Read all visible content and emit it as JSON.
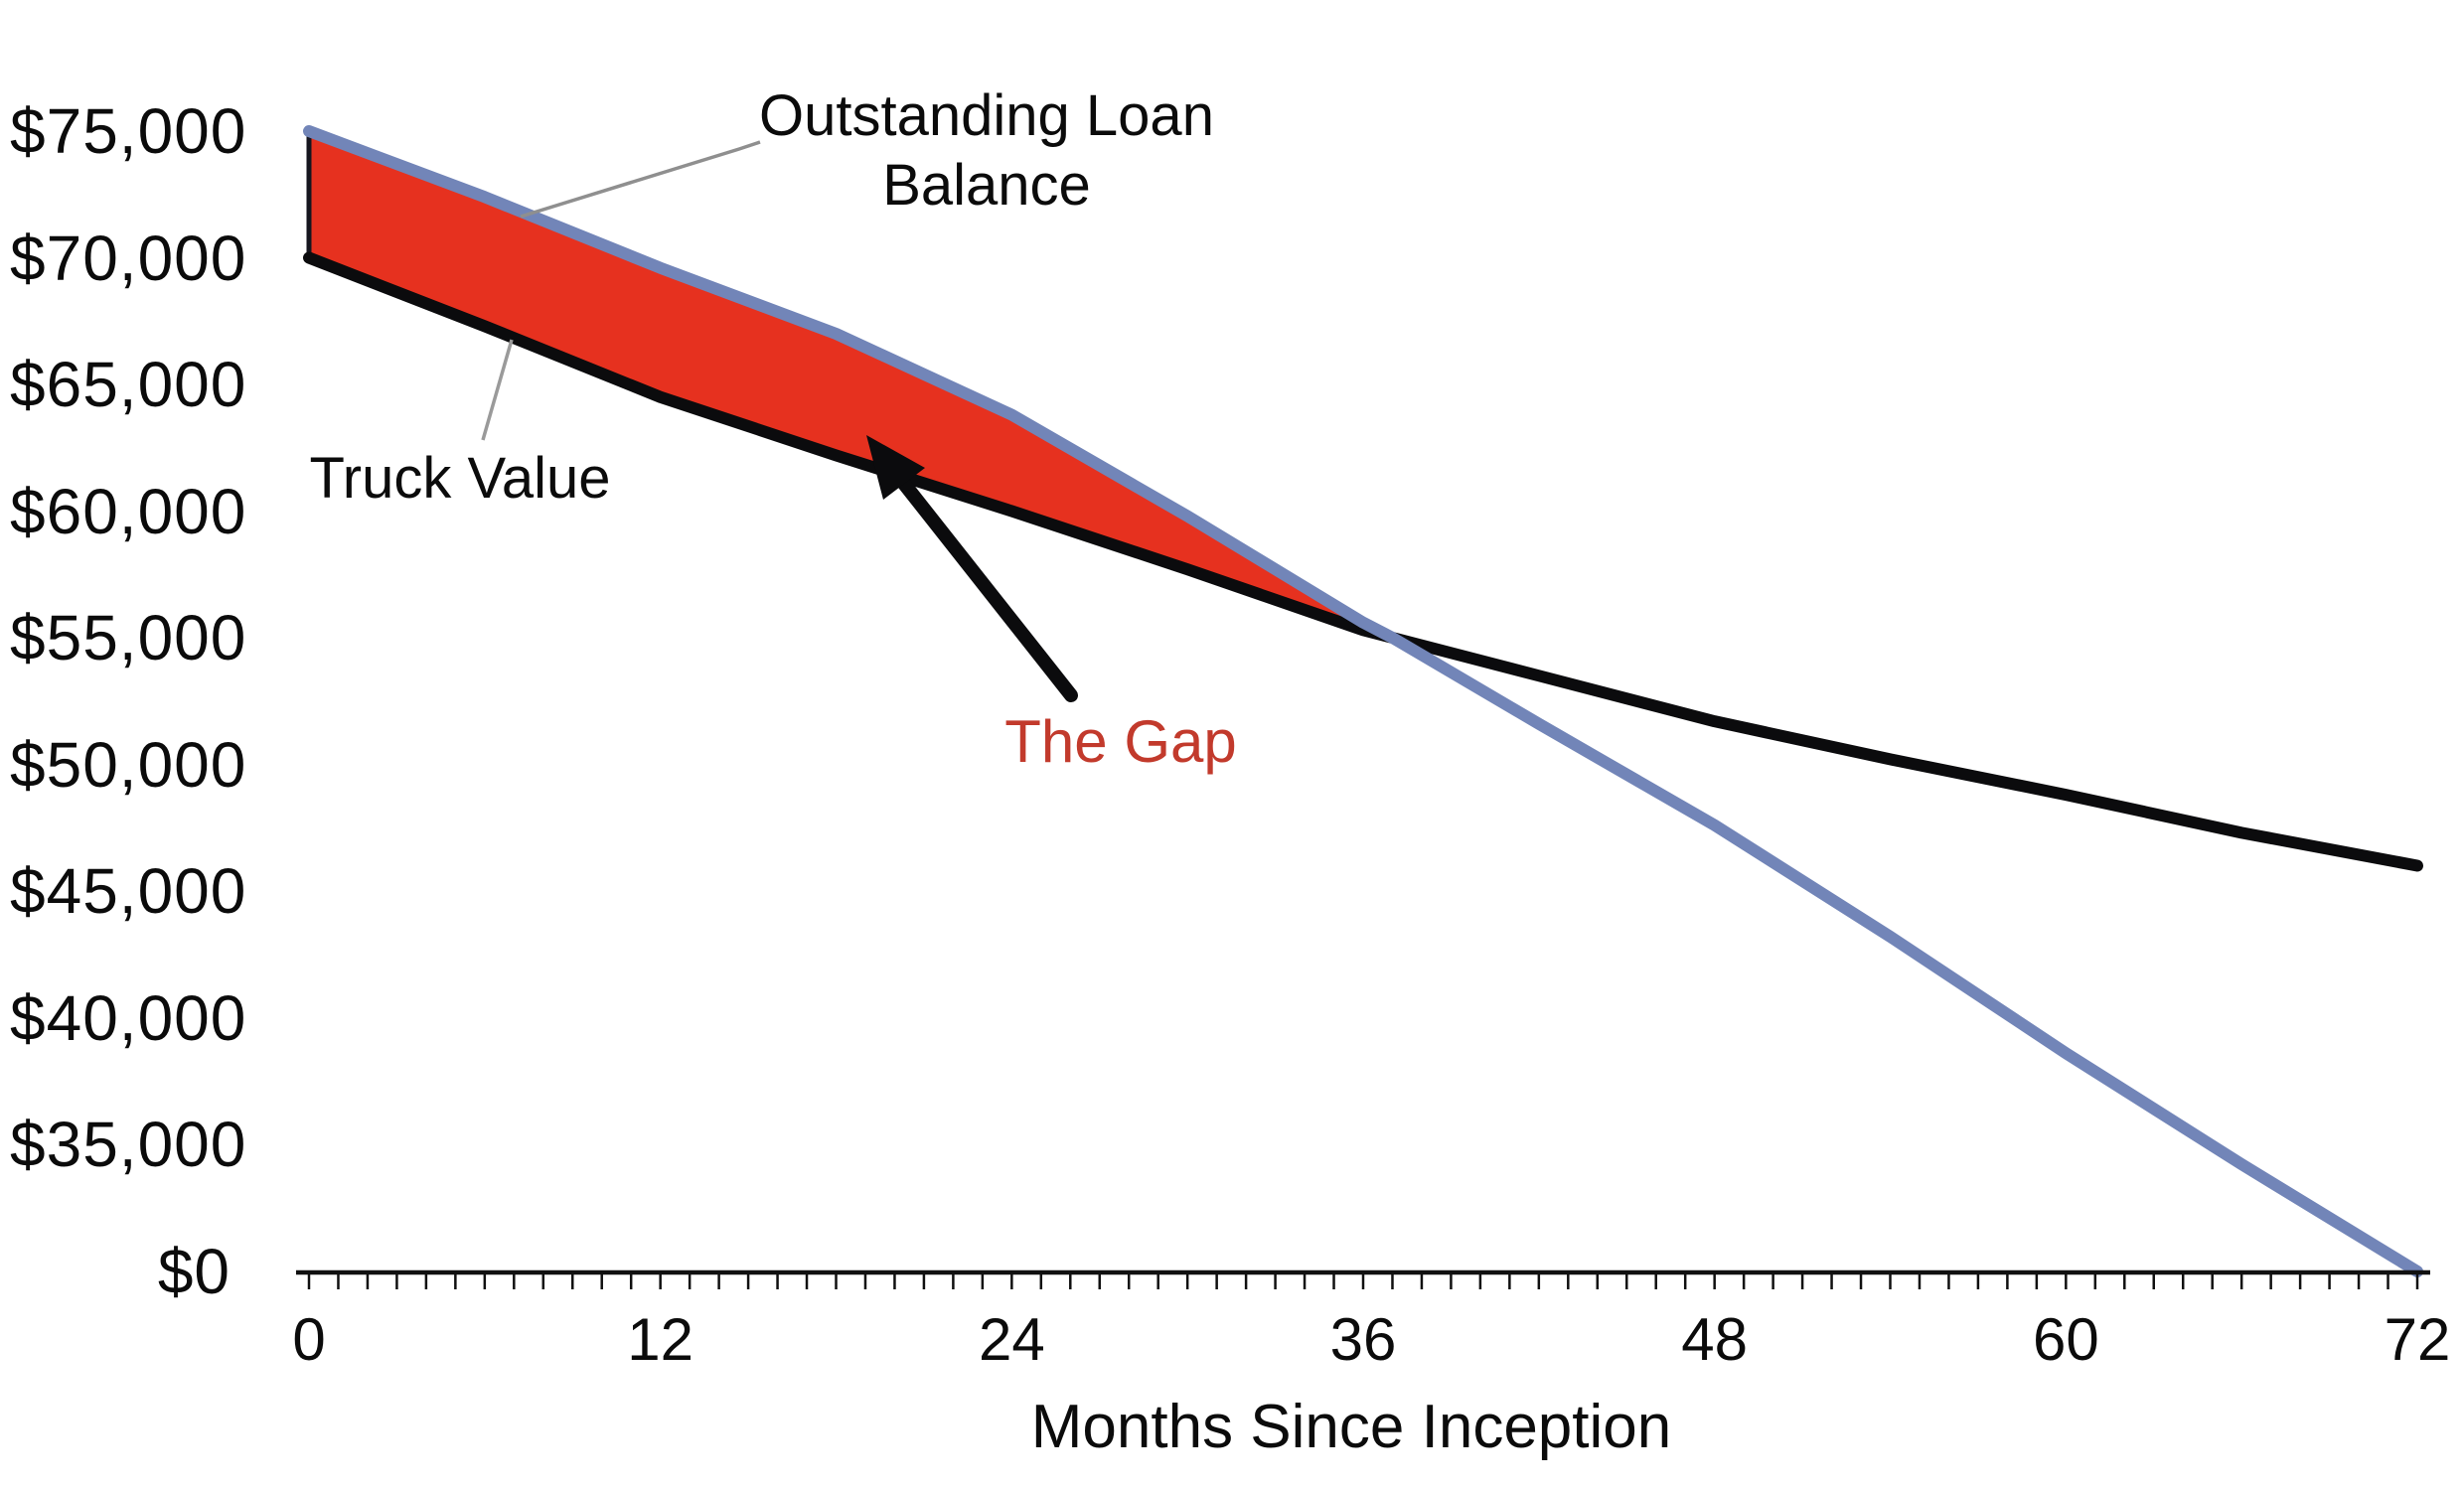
{
  "page": {
    "background": "#ffffff"
  },
  "chart_data": {
    "type": "line",
    "title": "",
    "xlabel": "Months Since Inception",
    "ylabel": "",
    "xlim": [
      0,
      72
    ],
    "grid": false,
    "legend": "none (labels drawn as annotations with leader lines)",
    "x_axis": {
      "minor_tick_step": 1,
      "ticks": [
        {
          "label": "0",
          "value": 0
        },
        {
          "label": "12",
          "value": 12
        },
        {
          "label": "24",
          "value": 24
        },
        {
          "label": "36",
          "value": 36
        },
        {
          "label": "48",
          "value": 48
        },
        {
          "label": "60",
          "value": 60
        },
        {
          "label": "72",
          "value": 72
        }
      ]
    },
    "y_axis": {
      "broken": true,
      "note": "ticks evenly spaced; $0 sits one step below $35,000 (compressed axis)",
      "ticks": [
        {
          "label": "$75,000",
          "value": 75000
        },
        {
          "label": "$70,000",
          "value": 70000
        },
        {
          "label": "$65,000",
          "value": 65000
        },
        {
          "label": "$60,000",
          "value": 60000
        },
        {
          "label": "$55,000",
          "value": 55000
        },
        {
          "label": "$50,000",
          "value": 50000
        },
        {
          "label": "$45,000",
          "value": 45000
        },
        {
          "label": "$40,000",
          "value": 40000
        },
        {
          "label": "$35,000",
          "value": 35000
        },
        {
          "label": "$0",
          "value": 0
        }
      ]
    },
    "x": [
      0,
      6,
      12,
      18,
      24,
      30,
      36,
      37,
      42,
      48,
      54,
      60,
      66,
      72
    ],
    "series": [
      {
        "name": "Outstanding Loan Balance",
        "color": "#7285b8",
        "values": [
          75000,
          72400,
          69600,
          67000,
          63800,
          59800,
          55600,
          55000,
          51600,
          47600,
          43200,
          38600,
          29500,
          0
        ]
      },
      {
        "name": "Truck Value",
        "color": "#0b0b0d",
        "values": [
          70000,
          67300,
          64500,
          62200,
          60000,
          57700,
          55300,
          55000,
          53500,
          51700,
          50200,
          48800,
          47300,
          46000
        ]
      }
    ],
    "gap_fill": {
      "label": "The Gap",
      "color": "#e6311f",
      "edge_color": "#16161f",
      "from_month": 0,
      "to_month": 37
    }
  },
  "annotations": {
    "loan_label": {
      "line1": "Outstanding Loan",
      "line2": "Balance"
    },
    "truck_label": "Truck Value",
    "gap_label": {
      "text": "The Gap",
      "color": "#c23a2c"
    }
  }
}
